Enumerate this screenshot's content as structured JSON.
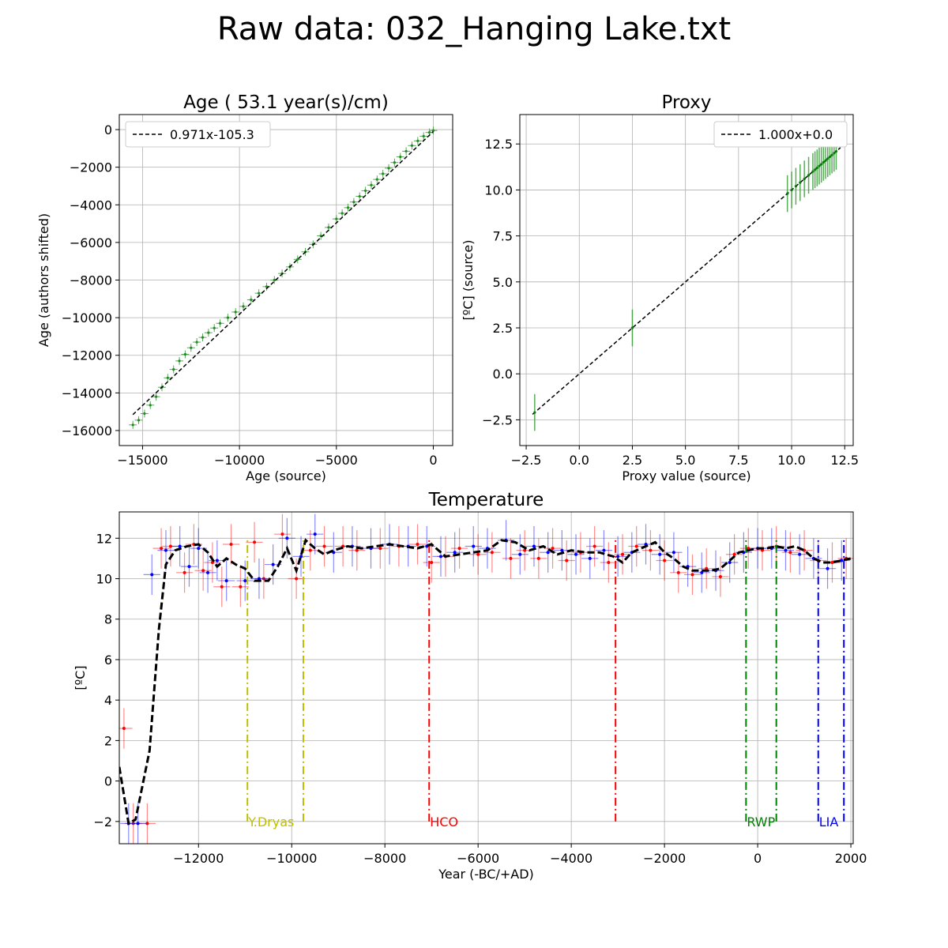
{
  "figure_title": "Raw data: 032_Hanging Lake.txt",
  "chart_data": [
    {
      "type": "scatter",
      "title": "Age ( 53.1 year(s)/cm)",
      "xlabel": "Age (source)",
      "ylabel": "Age (authors shifted)",
      "xlim": [
        -16200,
        1000
      ],
      "ylim": [
        -16800,
        800
      ],
      "xticks": [
        -15000,
        -10000,
        -5000,
        0
      ],
      "xtick_labels": [
        "−15000",
        "−10000",
        "−5000",
        "0"
      ],
      "yticks": [
        0,
        -2000,
        -4000,
        -6000,
        -8000,
        -10000,
        -12000,
        -14000,
        -16000
      ],
      "ytick_labels": [
        "0",
        "−2000",
        "−4000",
        "−6000",
        "−8000",
        "−10000",
        "−12000",
        "−14000",
        "−16000"
      ],
      "grid": true,
      "legend": {
        "placement": "upper-left",
        "entries": [
          "0.971x-105.3"
        ]
      },
      "fit_line": {
        "label": "0.971x-105.3",
        "x": [
          -15500,
          0
        ],
        "y": [
          -15155,
          -105
        ]
      },
      "points": {
        "x": [
          -15500,
          -15200,
          -14900,
          -14600,
          -14300,
          -14000,
          -13700,
          -13400,
          -13100,
          -12800,
          -12500,
          -12200,
          -11900,
          -11600,
          -11300,
          -11000,
          -10600,
          -10200,
          -9800,
          -9400,
          -9000,
          -8600,
          -8200,
          -7800,
          -7400,
          -7000,
          -6600,
          -6200,
          -5800,
          -5400,
          -5000,
          -4700,
          -4400,
          -4100,
          -3800,
          -3500,
          -3200,
          -2900,
          -2600,
          -2300,
          -2000,
          -1700,
          -1400,
          -1100,
          -800,
          -500,
          -200,
          0
        ],
        "y": [
          -15700,
          -15450,
          -15100,
          -14650,
          -14200,
          -13700,
          -13200,
          -12750,
          -12300,
          -11950,
          -11600,
          -11300,
          -11050,
          -10800,
          -10550,
          -10300,
          -10000,
          -9700,
          -9400,
          -9050,
          -8700,
          -8350,
          -8000,
          -7650,
          -7300,
          -6900,
          -6500,
          -6100,
          -5650,
          -5200,
          -4750,
          -4450,
          -4150,
          -3850,
          -3550,
          -3250,
          -2950,
          -2650,
          -2350,
          -2050,
          -1750,
          -1450,
          -1150,
          -850,
          -600,
          -350,
          -150,
          -50
        ]
      }
    },
    {
      "type": "scatter",
      "title": "Proxy",
      "xlabel": "Proxy value (source)",
      "ylabel": "[ºC] (source)",
      "xlim": [
        -2.8,
        12.9
      ],
      "ylim": [
        -3.9,
        14.1
      ],
      "xticks": [
        -2.5,
        0.0,
        2.5,
        5.0,
        7.5,
        10.0,
        12.5
      ],
      "xtick_labels": [
        "−2.5",
        "0.0",
        "2.5",
        "5.0",
        "7.5",
        "10.0",
        "12.5"
      ],
      "yticks": [
        -2.5,
        0.0,
        2.5,
        5.0,
        7.5,
        10.0,
        12.5
      ],
      "ytick_labels": [
        "−2.5",
        "0.0",
        "2.5",
        "5.0",
        "7.5",
        "10.0",
        "12.5"
      ],
      "grid": true,
      "legend": {
        "placement": "upper-right",
        "entries": [
          "1.000x+0.0"
        ]
      },
      "fit_line": {
        "label": "1.000x+0.0",
        "x": [
          -2.2,
          12.3
        ],
        "y": [
          -2.2,
          12.3
        ]
      },
      "points": {
        "x": [
          -2.1,
          2.5,
          9.8,
          10.0,
          10.2,
          10.4,
          10.6,
          10.8,
          11.0,
          11.1,
          11.2,
          11.3,
          11.4,
          11.5,
          11.6,
          11.7,
          11.8,
          11.9,
          12.0,
          12.1
        ],
        "y": [
          -2.1,
          2.5,
          9.8,
          10.0,
          10.2,
          10.4,
          10.6,
          10.8,
          11.0,
          11.1,
          11.2,
          11.3,
          11.4,
          11.5,
          11.6,
          11.7,
          11.8,
          11.9,
          12.0,
          12.1
        ],
        "yerr": 1.0
      }
    },
    {
      "type": "line",
      "title": "Temperature",
      "xlabel": "Year (-BC/+AD)",
      "ylabel": "[ºC]",
      "xlim": [
        -13700,
        2050
      ],
      "ylim": [
        -3.1,
        13.3
      ],
      "xticks": [
        -12000,
        -10000,
        -8000,
        -6000,
        -4000,
        -2000,
        0,
        2000
      ],
      "xtick_labels": [
        "−12000",
        "−10000",
        "−8000",
        "−6000",
        "−4000",
        "−2000",
        "0",
        "2000"
      ],
      "yticks": [
        -2,
        0,
        2,
        4,
        6,
        8,
        10,
        12
      ],
      "ytick_labels": [
        "−2",
        "0",
        "2",
        "4",
        "6",
        "8",
        "10",
        "12"
      ],
      "grid": true,
      "mean_line": {
        "x": [
          -13700,
          -13500,
          -13350,
          -13050,
          -12850,
          -12700,
          -12500,
          -12250,
          -12000,
          -11800,
          -11600,
          -11400,
          -11200,
          -11000,
          -10800,
          -10500,
          -10300,
          -10100,
          -9900,
          -9700,
          -9500,
          -9300,
          -9100,
          -8800,
          -8500,
          -8200,
          -7900,
          -7600,
          -7300,
          -7000,
          -6700,
          -6400,
          -6100,
          -5800,
          -5500,
          -5200,
          -4900,
          -4600,
          -4300,
          -4000,
          -3700,
          -3400,
          -3100,
          -2900,
          -2700,
          -2500,
          -2200,
          -2000,
          -1800,
          -1600,
          -1400,
          -1200,
          -1000,
          -800,
          -600,
          -400,
          -200,
          0,
          200,
          400,
          600,
          800,
          1000,
          1200,
          1400,
          1600,
          1800,
          2000
        ],
        "y": [
          0.7,
          -2.1,
          -1.9,
          1.5,
          7.5,
          10.7,
          11.4,
          11.6,
          11.7,
          11.3,
          10.6,
          11.0,
          10.7,
          10.5,
          9.9,
          9.9,
          10.6,
          11.5,
          10.4,
          11.9,
          11.5,
          11.2,
          11.4,
          11.6,
          11.5,
          11.6,
          11.7,
          11.6,
          11.5,
          11.7,
          11.1,
          11.2,
          11.3,
          11.4,
          11.9,
          11.8,
          11.4,
          11.6,
          11.2,
          11.4,
          11.3,
          11.3,
          11.1,
          10.8,
          11.3,
          11.5,
          11.8,
          11.3,
          11.0,
          10.6,
          10.4,
          10.4,
          10.4,
          10.5,
          10.9,
          11.3,
          11.4,
          11.5,
          11.5,
          11.6,
          11.5,
          11.6,
          11.4,
          11.0,
          10.8,
          10.8,
          10.9,
          11.0
        ]
      },
      "samples": [
        {
          "color": "red",
          "x": [
            -13600,
            -13400,
            -13100,
            -12800,
            -12600,
            -12300,
            -12100,
            -11900,
            -11700,
            -11500,
            -11300,
            -11100,
            -10800,
            -10600,
            -10200,
            -9900,
            -9600,
            -9300,
            -8900,
            -8600,
            -8100,
            -7700,
            -7300,
            -7000,
            -6700,
            -6400,
            -6000,
            -5700,
            -5300,
            -5000,
            -4700,
            -4400,
            -4100,
            -3800,
            -3500,
            -3200,
            -2900,
            -2600,
            -2300,
            -2000,
            -1700,
            -1400,
            -1100,
            -800,
            -500,
            -200,
            100,
            400,
            700,
            1000,
            1300,
            1600,
            1900
          ],
          "y": [
            2.6,
            -2.1,
            -2.1,
            11.5,
            11.6,
            10.3,
            11.7,
            10.4,
            10.8,
            9.6,
            11.7,
            9.6,
            11.8,
            10.0,
            12.2,
            10.0,
            11.4,
            11.6,
            11.6,
            11.4,
            11.5,
            11.6,
            11.7,
            10.8,
            11.1,
            11.5,
            11.2,
            11.3,
            11.0,
            11.4,
            11.0,
            11.5,
            10.9,
            11.3,
            11.6,
            10.8,
            11.2,
            11.6,
            11.4,
            10.9,
            10.3,
            10.2,
            10.5,
            10.1,
            11.2,
            11.5,
            11.4,
            11.6,
            11.3,
            11.4,
            10.9,
            10.8,
            11.0
          ]
        },
        {
          "color": "blue",
          "x": [
            -13500,
            -13300,
            -13000,
            -12700,
            -12400,
            -12200,
            -12000,
            -11800,
            -11600,
            -11400,
            -11000,
            -10700,
            -10400,
            -10100,
            -9800,
            -9500,
            -9100,
            -8700,
            -8300,
            -7900,
            -7500,
            -7100,
            -6800,
            -6500,
            -6100,
            -5800,
            -5400,
            -5100,
            -4800,
            -4500,
            -4200,
            -3900,
            -3600,
            -3300,
            -3000,
            -2700,
            -2400,
            -2100,
            -1800,
            -1500,
            -1200,
            -900,
            -600,
            -300,
            0,
            300,
            600,
            900,
            1200,
            1500,
            1800
          ],
          "y": [
            -2.1,
            -2.1,
            10.2,
            11.4,
            11.6,
            10.6,
            11.5,
            10.3,
            10.9,
            9.9,
            9.9,
            10.0,
            10.7,
            12.0,
            11.1,
            12.2,
            11.3,
            11.6,
            11.5,
            11.7,
            11.6,
            11.6,
            11.1,
            11.3,
            11.6,
            11.5,
            11.9,
            11.2,
            11.6,
            11.3,
            11.4,
            11.2,
            11.0,
            11.4,
            11.1,
            11.3,
            11.7,
            11.2,
            11.3,
            10.6,
            10.3,
            10.4,
            10.8,
            11.3,
            11.5,
            11.5,
            11.4,
            11.2,
            11.0,
            10.5,
            10.9
          ]
        }
      ],
      "periods": [
        {
          "label": "Y.Dryas",
          "color": "#bfbf00",
          "start": -10950,
          "end": -9750
        },
        {
          "label": "HCO",
          "color": "#ff0000",
          "start": -7050,
          "end": -3050
        },
        {
          "label": "RWP",
          "color": "#008000",
          "start": -250,
          "end": 400
        },
        {
          "label": "LIA",
          "color": "#0000ff",
          "start": 1300,
          "end": 1850
        }
      ]
    }
  ]
}
